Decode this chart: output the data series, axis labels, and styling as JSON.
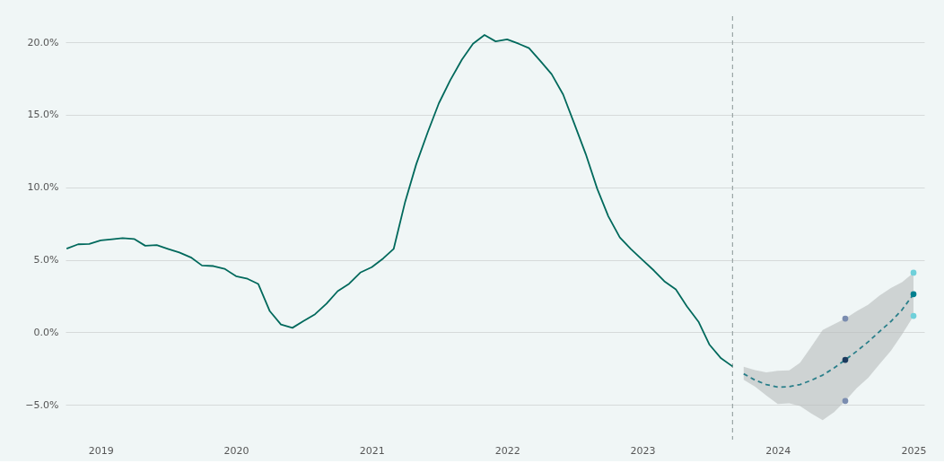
{
  "chart_data": {
    "type": "line",
    "xlim": [
      "2018-09-28",
      "2025-01-30"
    ],
    "ylim": [
      -7.4,
      21.8
    ],
    "xticks": [
      "2019",
      "2020",
      "2021",
      "2022",
      "2023",
      "2024",
      "2025"
    ],
    "yticks": [
      {
        "value": -5,
        "label": "−5.0%"
      },
      {
        "value": 0,
        "label": "0.0%"
      },
      {
        "value": 5,
        "label": "5.0%"
      },
      {
        "value": 10,
        "label": "10.0%"
      },
      {
        "value": 15,
        "label": "15.0%"
      },
      {
        "value": 20,
        "label": "20.0%"
      }
    ],
    "grid": "y",
    "ref_lines": [
      {
        "axis": "x",
        "value": "2023-09",
        "color": "#9aa5a5",
        "line_style": "dashed"
      }
    ],
    "series": [
      {
        "color": "#00695c",
        "line_style": "solid",
        "x": [
          "2018-10",
          "2018-11",
          "2018-12",
          "2019-01",
          "2019-02",
          "2019-03",
          "2019-04",
          "2019-05",
          "2019-06",
          "2019-07",
          "2019-08",
          "2019-09",
          "2019-10",
          "2019-11",
          "2019-12",
          "2020-01",
          "2020-02",
          "2020-03",
          "2020-04",
          "2020-05",
          "2020-06",
          "2020-07",
          "2020-08",
          "2020-09",
          "2020-10",
          "2020-11",
          "2020-12",
          "2021-01",
          "2021-02",
          "2021-03",
          "2021-04",
          "2021-05",
          "2021-06",
          "2021-07",
          "2021-08",
          "2021-09",
          "2021-10",
          "2021-11",
          "2021-12",
          "2022-01",
          "2022-02",
          "2022-03",
          "2022-04",
          "2022-05",
          "2022-06",
          "2022-07",
          "2022-08",
          "2022-09",
          "2022-10",
          "2022-11",
          "2022-12",
          "2023-01",
          "2023-02",
          "2023-03",
          "2023-04",
          "2023-05",
          "2023-06",
          "2023-07",
          "2023-08",
          "2023-09"
        ],
        "values": [
          5.77,
          6.07,
          6.1,
          6.34,
          6.42,
          6.5,
          6.44,
          5.97,
          6.02,
          5.76,
          5.51,
          5.17,
          4.61,
          4.57,
          4.38,
          3.87,
          3.69,
          3.33,
          1.46,
          0.54,
          0.31,
          0.78,
          1.25,
          1.98,
          2.84,
          3.35,
          4.12,
          4.49,
          5.1,
          5.75,
          9.0,
          11.6,
          13.8,
          15.8,
          17.4,
          18.8,
          19.9,
          20.5,
          20.06,
          20.2,
          19.9,
          19.6,
          18.7,
          17.8,
          16.4,
          14.4,
          12.3,
          9.9,
          8.0,
          6.54,
          5.74,
          5.0,
          4.26,
          3.52,
          2.96,
          1.79,
          0.74,
          -0.86,
          -1.79,
          -2.35
        ]
      },
      {
        "color": "#2a7f8a",
        "line_style": "dashed",
        "x": [
          "2023-10",
          "2023-11",
          "2023-12",
          "2024-01",
          "2024-02",
          "2024-03",
          "2024-04",
          "2024-05",
          "2024-06",
          "2024-07",
          "2024-08",
          "2024-09",
          "2024-10",
          "2024-11",
          "2024-12",
          "2025-01"
        ],
        "values": [
          -2.86,
          -3.3,
          -3.6,
          -3.78,
          -3.75,
          -3.6,
          -3.3,
          -2.95,
          -2.45,
          -1.9,
          -1.3,
          -0.65,
          0.05,
          0.75,
          1.55,
          2.63
        ],
        "lower": [
          -3.27,
          -3.75,
          -4.36,
          -4.94,
          -4.9,
          -5.08,
          -5.6,
          -6.05,
          -5.49,
          -4.73,
          -3.85,
          -3.13,
          -2.2,
          -1.28,
          -0.14,
          1.13
        ],
        "upper": [
          -2.37,
          -2.6,
          -2.76,
          -2.65,
          -2.62,
          -2.1,
          -0.97,
          0.16,
          0.57,
          0.95,
          1.46,
          1.91,
          2.53,
          3.05,
          3.46,
          4.11
        ]
      },
      {
        "type": "scatter",
        "color": "#7b8db0",
        "x": [
          "2024-07",
          "2024-07"
        ],
        "values": [
          0.95,
          -4.73
        ]
      },
      {
        "type": "scatter",
        "color": "#1b3a5e",
        "x": [
          "2024-07"
        ],
        "values": [
          -1.9
        ]
      },
      {
        "type": "scatter",
        "color": "#6fd0da",
        "x": [
          "2025-01",
          "2025-01"
        ],
        "values": [
          4.11,
          1.13
        ]
      },
      {
        "type": "scatter",
        "color": "#00808f",
        "x": [
          "2025-01"
        ],
        "values": [
          2.63
        ]
      }
    ]
  }
}
